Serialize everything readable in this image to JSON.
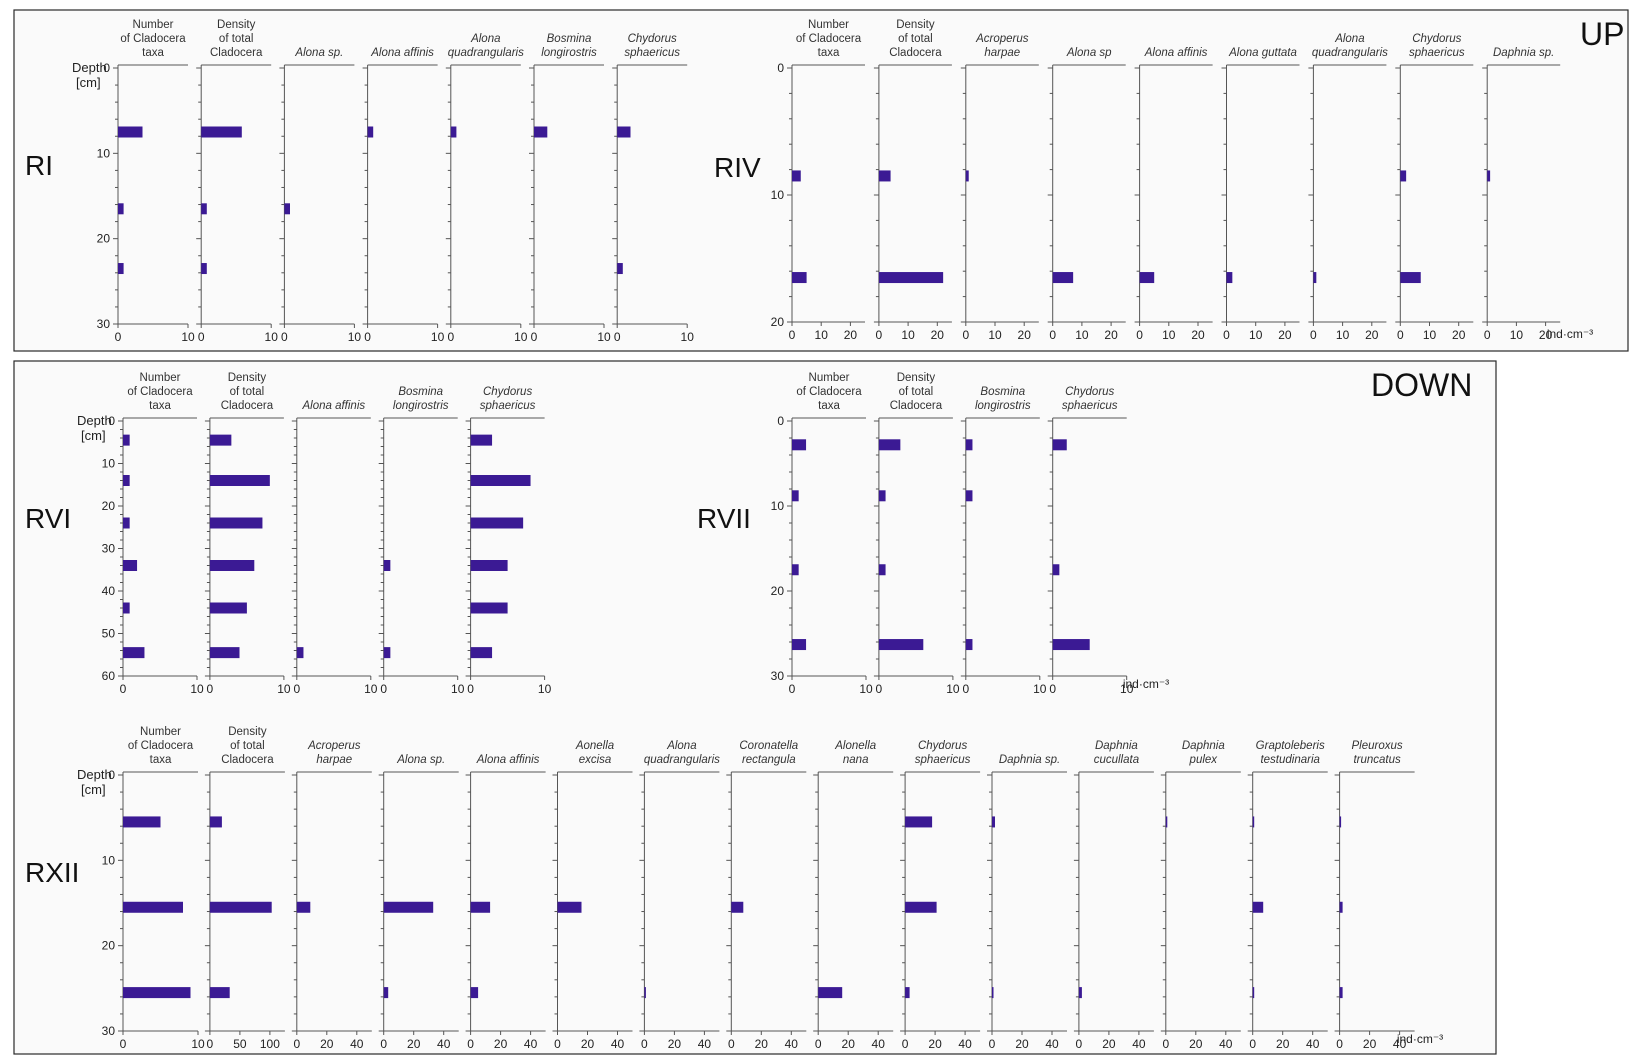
{
  "labels": {
    "up": "UP",
    "down": "DOWN",
    "unit": "ind·cm⁻³",
    "depth": [
      "Depth",
      "[cm]"
    ]
  },
  "colors": {
    "bar": "#3b1a94",
    "frame": "#2a2a2a",
    "panel": "#fafafa"
  },
  "chart_data": [
    {
      "type": "bar",
      "site": "RI",
      "group": "UP",
      "orientation": "horizontal",
      "ylabel": "Depth [cm]",
      "ylim": [
        0,
        30
      ],
      "yticks": [
        0,
        10,
        20,
        30
      ],
      "depths": [
        7.5,
        16.5,
        23.5
      ],
      "series": [
        {
          "name": "Number of Cladocera taxa",
          "header": [
            "Number",
            "of Cladocera",
            "taxa"
          ],
          "italic": false,
          "xlim": [
            0,
            10
          ],
          "xticks": [
            0,
            10
          ],
          "values": [
            3.5,
            0.8,
            0.8
          ]
        },
        {
          "name": "Density of total Cladocera",
          "header": [
            "Density",
            "of total",
            "Cladocera"
          ],
          "italic": false,
          "xlim": [
            0,
            10
          ],
          "xticks": [
            0,
            10
          ],
          "values": [
            5.8,
            0.8,
            0.8
          ]
        },
        {
          "name": "Alona sp.",
          "header": [
            "Alona sp."
          ],
          "italic": true,
          "xlim": [
            0,
            10
          ],
          "xticks": [
            0,
            10
          ],
          "values": [
            0,
            0.8,
            0
          ]
        },
        {
          "name": "Alona affinis",
          "header": [
            "Alona affinis"
          ],
          "italic": true,
          "xlim": [
            0,
            10
          ],
          "xticks": [
            0,
            10
          ],
          "values": [
            0.8,
            0,
            0
          ]
        },
        {
          "name": "Alona quadrangularis",
          "header": [
            "Alona",
            "quadrangularis"
          ],
          "italic": true,
          "xlim": [
            0,
            10
          ],
          "xticks": [
            0,
            10
          ],
          "values": [
            0.8,
            0,
            0
          ]
        },
        {
          "name": "Bosmina longirostris",
          "header": [
            "Bosmina",
            "longirostris"
          ],
          "italic": true,
          "xlim": [
            0,
            10
          ],
          "xticks": [
            0,
            10
          ],
          "values": [
            1.9,
            0,
            0
          ]
        },
        {
          "name": "Chydorus sphaericus",
          "header": [
            "Chydorus",
            "sphaericus"
          ],
          "italic": true,
          "xlim": [
            0,
            10
          ],
          "xticks": [
            0,
            10
          ],
          "values": [
            1.9,
            0,
            0.8
          ]
        }
      ]
    },
    {
      "type": "bar",
      "site": "RIV",
      "group": "UP",
      "orientation": "horizontal",
      "ylabel": "",
      "ylim": [
        0,
        20
      ],
      "yticks": [
        0,
        10,
        20
      ],
      "depths": [
        8.5,
        16.5
      ],
      "series": [
        {
          "name": "Number of Cladocera taxa",
          "header": [
            "Number",
            "of Cladocera",
            "taxa"
          ],
          "italic": false,
          "xlim": [
            0,
            25
          ],
          "xticks": [
            0,
            10,
            20
          ],
          "values": [
            3,
            5
          ]
        },
        {
          "name": "Density of total Cladocera",
          "header": [
            "Density",
            "of total",
            "Cladocera"
          ],
          "italic": false,
          "xlim": [
            0,
            25
          ],
          "xticks": [
            0,
            10,
            20
          ],
          "values": [
            4,
            22
          ]
        },
        {
          "name": "Acroperus harpae",
          "header": [
            "Acroperus",
            "harpae"
          ],
          "italic": true,
          "xlim": [
            0,
            25
          ],
          "xticks": [
            0,
            10,
            20
          ],
          "values": [
            1,
            0
          ]
        },
        {
          "name": "Alona sp",
          "header": [
            "Alona sp"
          ],
          "italic": true,
          "xlim": [
            0,
            25
          ],
          "xticks": [
            0,
            10,
            20
          ],
          "values": [
            0,
            7
          ]
        },
        {
          "name": "Alona affinis",
          "header": [
            "Alona affinis"
          ],
          "italic": true,
          "xlim": [
            0,
            25
          ],
          "xticks": [
            0,
            10,
            20
          ],
          "values": [
            0,
            5
          ]
        },
        {
          "name": "Alona guttata",
          "header": [
            "Alona guttata"
          ],
          "italic": true,
          "xlim": [
            0,
            25
          ],
          "xticks": [
            0,
            10,
            20
          ],
          "values": [
            0,
            2
          ]
        },
        {
          "name": "Alona quadrangularis",
          "header": [
            "Alona",
            "quadrangularis"
          ],
          "italic": true,
          "xlim": [
            0,
            25
          ],
          "xticks": [
            0,
            10,
            20
          ],
          "values": [
            0,
            1
          ]
        },
        {
          "name": "Chydorus sphaericus",
          "header": [
            "Chydorus",
            "sphaericus"
          ],
          "italic": true,
          "xlim": [
            0,
            25
          ],
          "xticks": [
            0,
            10,
            20
          ],
          "values": [
            2,
            7
          ]
        },
        {
          "name": "Daphnia sp.",
          "header": [
            "Daphnia sp."
          ],
          "italic": true,
          "xlim": [
            0,
            25
          ],
          "xticks": [
            0,
            10,
            20
          ],
          "values": [
            1,
            0
          ]
        }
      ]
    },
    {
      "type": "bar",
      "site": "RVI",
      "group": "DOWN",
      "orientation": "horizontal",
      "ylabel": "Depth [cm]",
      "ylim": [
        0,
        60
      ],
      "yticks": [
        0,
        10,
        20,
        30,
        40,
        50,
        60
      ],
      "depths": [
        4.5,
        14,
        24,
        34,
        44,
        54.5
      ],
      "series": [
        {
          "name": "Number of Cladocera taxa",
          "header": [
            "Number",
            "of Cladocera",
            "taxa"
          ],
          "italic": false,
          "xlim": [
            0,
            10
          ],
          "xticks": [
            0,
            10
          ],
          "values": [
            0.9,
            0.9,
            0.9,
            1.9,
            0.9,
            2.9
          ]
        },
        {
          "name": "Density of total Cladocera",
          "header": [
            "Density",
            "of total",
            "Cladocera"
          ],
          "italic": false,
          "xlim": [
            0,
            10
          ],
          "xticks": [
            0,
            10
          ],
          "values": [
            2.9,
            8.1,
            7.1,
            6,
            5,
            4
          ]
        },
        {
          "name": "Alona affinis",
          "header": [
            "Alona affinis"
          ],
          "italic": true,
          "xlim": [
            0,
            10
          ],
          "xticks": [
            0,
            10
          ],
          "values": [
            0,
            0,
            0,
            0,
            0,
            0.9
          ]
        },
        {
          "name": "Bosmina longirostris",
          "header": [
            "Bosmina",
            "longirostris"
          ],
          "italic": true,
          "xlim": [
            0,
            10
          ],
          "xticks": [
            0,
            10
          ],
          "values": [
            0,
            0,
            0,
            0.9,
            0,
            0.9
          ]
        },
        {
          "name": "Chydorus sphaericus",
          "header": [
            "Chydorus",
            "sphaericus"
          ],
          "italic": true,
          "xlim": [
            0,
            10
          ],
          "xticks": [
            0,
            10
          ],
          "values": [
            2.9,
            8.1,
            7.1,
            5,
            5,
            2.9
          ]
        }
      ]
    },
    {
      "type": "bar",
      "site": "RVII",
      "group": "DOWN",
      "orientation": "horizontal",
      "ylabel": "",
      "ylim": [
        0,
        30
      ],
      "yticks": [
        0,
        10,
        20,
        30
      ],
      "depths": [
        2.8,
        8.8,
        17.5,
        26.3
      ],
      "series": [
        {
          "name": "Number of Cladocera taxa",
          "header": [
            "Number",
            "of Cladocera",
            "taxa"
          ],
          "italic": false,
          "xlim": [
            0,
            10
          ],
          "xticks": [
            0,
            10
          ],
          "values": [
            1.9,
            0.9,
            0.9,
            1.9
          ]
        },
        {
          "name": "Density of total Cladocera",
          "header": [
            "Density",
            "of total",
            "Cladocera"
          ],
          "italic": false,
          "xlim": [
            0,
            10
          ],
          "xticks": [
            0,
            10
          ],
          "values": [
            2.9,
            0.9,
            0.9,
            6
          ]
        },
        {
          "name": "Bosmina longirostris",
          "header": [
            "Bosmina",
            "longirostris"
          ],
          "italic": true,
          "xlim": [
            0,
            10
          ],
          "xticks": [
            0,
            10
          ],
          "values": [
            0.9,
            0.9,
            0,
            0.9
          ]
        },
        {
          "name": "Chydorus sphaericus",
          "header": [
            "Chydorus",
            "sphaericus"
          ],
          "italic": true,
          "xlim": [
            0,
            10
          ],
          "xticks": [
            0,
            10
          ],
          "values": [
            1.9,
            0,
            0.9,
            5
          ]
        }
      ]
    },
    {
      "type": "bar",
      "site": "RXII",
      "group": "DOWN",
      "orientation": "horizontal",
      "ylabel": "Depth [cm]",
      "ylim": [
        0,
        30
      ],
      "yticks": [
        0,
        10,
        20,
        30
      ],
      "depths": [
        5.5,
        15.5,
        25.5
      ],
      "series": [
        {
          "name": "Number of Cladocera taxa",
          "header": [
            "Number",
            "of Cladocera",
            "taxa"
          ],
          "italic": false,
          "xlim": [
            0,
            10
          ],
          "xticks": [
            0,
            10
          ],
          "values": [
            5,
            8,
            9
          ]
        },
        {
          "name": "Density of total Cladocera",
          "header": [
            "Density",
            "of total",
            "Cladocera"
          ],
          "italic": false,
          "xlim": [
            0,
            125
          ],
          "xticks": [
            0,
            50,
            100
          ],
          "values": [
            20,
            103,
            33
          ]
        },
        {
          "name": "Acroperus harpae",
          "header": [
            "Acroperus",
            "harpae"
          ],
          "italic": true,
          "xlim": [
            0,
            50
          ],
          "xticks": [
            0,
            20,
            40
          ],
          "values": [
            0,
            9,
            0
          ]
        },
        {
          "name": "Alona sp.",
          "header": [
            "Alona sp."
          ],
          "italic": true,
          "xlim": [
            0,
            50
          ],
          "xticks": [
            0,
            20,
            40
          ],
          "values": [
            0,
            33,
            3
          ]
        },
        {
          "name": "Alona affinis",
          "header": [
            "Alona affinis"
          ],
          "italic": true,
          "xlim": [
            0,
            50
          ],
          "xticks": [
            0,
            20,
            40
          ],
          "values": [
            0,
            13,
            5
          ]
        },
        {
          "name": "Aonella excisa",
          "header": [
            "Aonella",
            "excisa"
          ],
          "italic": true,
          "xlim": [
            0,
            50
          ],
          "xticks": [
            0,
            20,
            40
          ],
          "values": [
            0,
            16,
            0
          ]
        },
        {
          "name": "Alona quadrangularis",
          "header": [
            "Alona",
            "quadrangularis"
          ],
          "italic": true,
          "xlim": [
            0,
            50
          ],
          "xticks": [
            0,
            20,
            40
          ],
          "values": [
            0,
            0,
            1
          ]
        },
        {
          "name": "Coronatella rectangula",
          "header": [
            "Coronatella",
            "rectangula"
          ],
          "italic": true,
          "xlim": [
            0,
            50
          ],
          "xticks": [
            0,
            20,
            40
          ],
          "values": [
            0,
            8,
            0
          ]
        },
        {
          "name": "Alonella nana",
          "header": [
            "Alonella",
            "nana"
          ],
          "italic": true,
          "xlim": [
            0,
            50
          ],
          "xticks": [
            0,
            20,
            40
          ],
          "values": [
            0,
            0,
            16
          ]
        },
        {
          "name": "Chydorus sphaericus",
          "header": [
            "Chydorus",
            "sphaericus"
          ],
          "italic": true,
          "xlim": [
            0,
            50
          ],
          "xticks": [
            0,
            20,
            40
          ],
          "values": [
            18,
            21,
            3
          ]
        },
        {
          "name": "Daphnia sp.",
          "header": [
            "Daphnia sp."
          ],
          "italic": true,
          "xlim": [
            0,
            50
          ],
          "xticks": [
            0,
            20,
            40
          ],
          "values": [
            2,
            0,
            1
          ]
        },
        {
          "name": "Daphnia cucullata",
          "header": [
            "Daphnia",
            "cucullata"
          ],
          "italic": true,
          "xlim": [
            0,
            50
          ],
          "xticks": [
            0,
            20,
            40
          ],
          "values": [
            0,
            0,
            2
          ]
        },
        {
          "name": "Daphnia pulex",
          "header": [
            "Daphnia",
            "pulex"
          ],
          "italic": true,
          "xlim": [
            0,
            50
          ],
          "xticks": [
            0,
            20,
            40
          ],
          "values": [
            1,
            0,
            0
          ]
        },
        {
          "name": "Graptoleberis testudinaria",
          "header": [
            "Graptoleberis",
            "testudinaria"
          ],
          "italic": true,
          "xlim": [
            0,
            50
          ],
          "xticks": [
            0,
            20,
            40
          ],
          "values": [
            1,
            7,
            1
          ]
        },
        {
          "name": "Pleuroxus truncatus",
          "header": [
            "Pleuroxus",
            "truncatus"
          ],
          "italic": true,
          "xlim": [
            0,
            50
          ],
          "xticks": [
            0,
            20,
            40
          ],
          "values": [
            1,
            2,
            2
          ]
        }
      ]
    }
  ]
}
